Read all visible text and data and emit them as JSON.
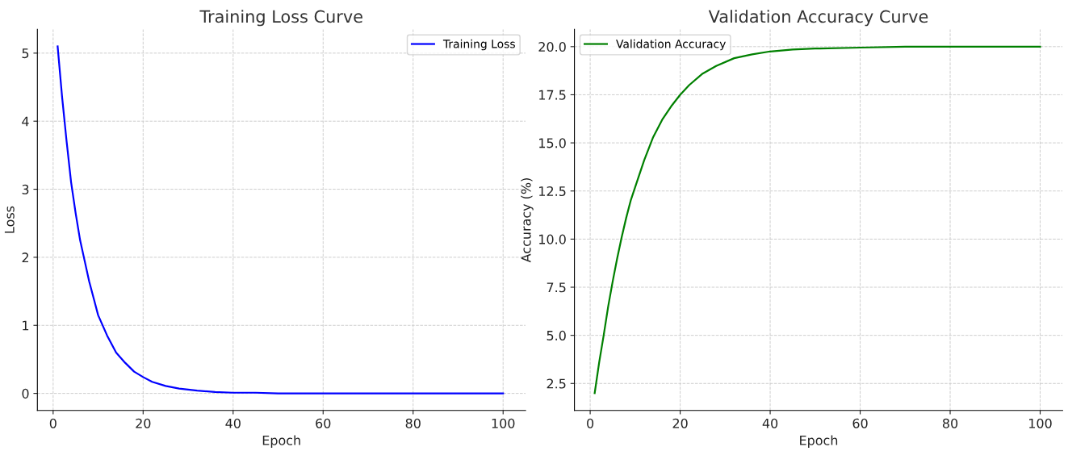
{
  "chart_data": [
    {
      "type": "line",
      "title": "Training Loss Curve",
      "xlabel": "Epoch",
      "ylabel": "Loss",
      "series": [
        {
          "name": "Training Loss",
          "color": "#0000ff",
          "x": [
            1,
            2,
            3,
            4,
            5,
            6,
            7,
            8,
            9,
            10,
            12,
            14,
            16,
            18,
            20,
            22,
            25,
            28,
            32,
            36,
            40,
            45,
            50,
            60,
            80,
            100
          ],
          "values": [
            5.1,
            4.35,
            3.7,
            3.1,
            2.65,
            2.25,
            1.95,
            1.65,
            1.4,
            1.15,
            0.85,
            0.6,
            0.45,
            0.32,
            0.24,
            0.17,
            0.11,
            0.07,
            0.04,
            0.02,
            0.01,
            0.01,
            0,
            0,
            0,
            0
          ]
        }
      ],
      "xlim": [
        -3.5,
        105
      ],
      "ylim": [
        -0.25,
        5.35
      ],
      "xticks": [
        0,
        20,
        40,
        60,
        80,
        100
      ],
      "yticks": [
        0,
        1,
        2,
        3,
        4,
        5
      ],
      "grid": true,
      "legend": "top right",
      "line_style": "solid",
      "marker": "none"
    },
    {
      "type": "line",
      "title": "Validation Accuracy Curve",
      "xlabel": "Epoch",
      "ylabel": "Accuracy (%)",
      "series": [
        {
          "name": "Validation Accuracy",
          "color": "#008000",
          "x": [
            1,
            2,
            3,
            4,
            5,
            6,
            7,
            8,
            9,
            10,
            12,
            14,
            16,
            18,
            20,
            22,
            25,
            28,
            32,
            36,
            40,
            45,
            50,
            60,
            70,
            80,
            100
          ],
          "values": [
            2.0,
            3.6,
            5.0,
            6.5,
            7.8,
            9.0,
            10.1,
            11.1,
            12.0,
            12.7,
            14.1,
            15.3,
            16.2,
            16.9,
            17.5,
            18.0,
            18.6,
            19.0,
            19.4,
            19.6,
            19.75,
            19.85,
            19.9,
            19.95,
            20,
            20,
            20
          ]
        }
      ],
      "xlim": [
        -3.5,
        105
      ],
      "ylim": [
        1.1,
        20.9
      ],
      "xticks": [
        0,
        20,
        40,
        60,
        80,
        100
      ],
      "yticks": [
        {
          "value": 2.5,
          "label": "2.5"
        },
        {
          "value": 5,
          "label": "5.0"
        },
        {
          "value": 7.5,
          "label": "7.5"
        },
        {
          "value": 10,
          "label": "10.0"
        },
        {
          "value": 12.5,
          "label": "12.5"
        },
        {
          "value": 15,
          "label": "15.0"
        },
        {
          "value": 17.5,
          "label": "17.5"
        },
        {
          "value": 20,
          "label": "20.0"
        }
      ],
      "grid": true,
      "legend": "top left",
      "line_style": "solid",
      "marker": "none"
    }
  ]
}
